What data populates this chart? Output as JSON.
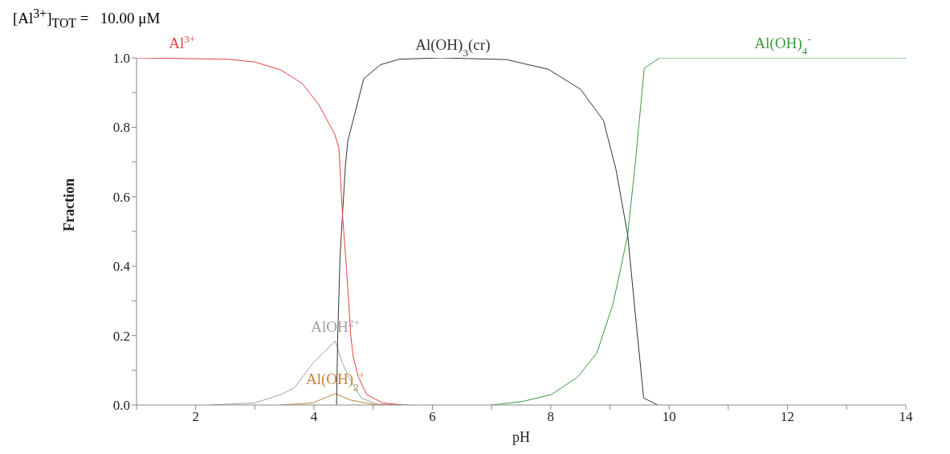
{
  "chart_data": {
    "type": "line",
    "title": "[Al$^{3+}$]$_{TOT}$ =   10.00 μM",
    "xlabel": "pH",
    "ylabel": "Fraction",
    "xlim": [
      1,
      14
    ],
    "xticks": [
      {
        "value": 1,
        "label": null
      },
      2,
      {
        "value": 3,
        "label": null
      },
      4,
      {
        "value": 5,
        "label": null
      },
      6,
      {
        "value": 7,
        "label": null
      },
      8,
      {
        "value": 9,
        "label": null
      },
      10,
      {
        "value": 11,
        "label": null
      },
      12,
      {
        "value": 13,
        "label": null
      },
      14
    ],
    "ylim": [
      0,
      1
    ],
    "yticks": [
      {
        "value": 0,
        "label": "0.0"
      },
      {
        "value": 0.1,
        "label": null
      },
      {
        "value": 0.2,
        "label": "0.2"
      },
      {
        "value": 0.3,
        "label": null
      },
      {
        "value": 0.4,
        "label": "0.4"
      },
      {
        "value": 0.5,
        "label": null
      },
      {
        "value": 0.6,
        "label": "0.6"
      },
      {
        "value": 0.7,
        "label": null
      },
      {
        "value": 0.8,
        "label": "0.8"
      },
      {
        "value": 0.9,
        "label": null
      },
      {
        "value": 1,
        "label": "1.0"
      }
    ],
    "grid": false,
    "legend": false,
    "marker": "none",
    "line_style": "solid",
    "series": [
      {
        "name": "Al$^{3+}$",
        "color": "#e8413c",
        "x": [
          1,
          2.54,
          3.0,
          3.44,
          3.8,
          4.08,
          4.35,
          4.42,
          4.48,
          4.55,
          4.62,
          4.66,
          4.75,
          4.89,
          5.16,
          5.5
        ],
        "values": [
          1,
          0.996,
          0.988,
          0.965,
          0.926,
          0.865,
          0.78,
          0.74,
          0.55,
          0.39,
          0.2,
          0.14,
          0.08,
          0.03,
          0.006,
          0
        ]
      },
      {
        "name": "Al(OH)$_{3}$(cr)",
        "color": "#333333",
        "x": [
          4.38,
          4.4,
          4.44,
          4.53,
          4.57,
          4.84,
          5.12,
          5.44,
          6.15,
          7.25,
          7.96,
          8.5,
          8.89,
          9.1,
          9.3,
          9.43,
          9.57,
          9.81
        ],
        "values": [
          0,
          0.2,
          0.43,
          0.69,
          0.76,
          0.94,
          0.98,
          0.996,
          1,
          0.995,
          0.967,
          0.91,
          0.82,
          0.68,
          0.49,
          0.26,
          0.02,
          0
        ]
      },
      {
        "name": "Al(OH)$_{4}$$^{-}$",
        "color": "#3a9a3a",
        "x": [
          7.0,
          7.52,
          8.01,
          8.45,
          8.78,
          9.05,
          9.19,
          9.3,
          9.43,
          9.58,
          9.84,
          14
        ],
        "values": [
          0,
          0.01,
          0.03,
          0.08,
          0.15,
          0.29,
          0.4,
          0.49,
          0.7,
          0.97,
          1,
          1
        ]
      },
      {
        "name": "AlOH$^{2+}$",
        "color": "#a0a0a0",
        "x": [
          2.22,
          3.0,
          3.44,
          3.67,
          3.98,
          4.36,
          4.48,
          4.62,
          4.8,
          5.07,
          5.6
        ],
        "values": [
          0,
          0.006,
          0.03,
          0.05,
          0.12,
          0.184,
          0.12,
          0.07,
          0.02,
          0.002,
          0
        ]
      },
      {
        "name": "Al(OH)$_{2}$$^{+}$",
        "color": "#c8803a",
        "x": [
          3.44,
          3.98,
          4.36,
          4.62,
          5.0,
          5.5
        ],
        "values": [
          0,
          0.006,
          0.033,
          0.014,
          0.002,
          0
        ]
      }
    ]
  }
}
